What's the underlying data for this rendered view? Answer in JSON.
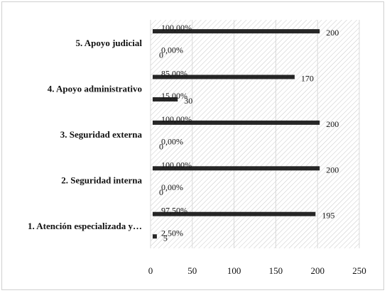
{
  "chart_data": {
    "type": "bar",
    "orientation": "horizontal",
    "categories": [
      "1. Atención especializada y…",
      "2. Seguridad interna",
      "3. Seguridad externa",
      "4. Apoyo administrativo",
      "5. Apoyo judicial"
    ],
    "series": [
      {
        "values": [
          5,
          0,
          0,
          30,
          0
        ],
        "percent_labels": [
          "2,50%",
          "0,00%",
          "0,00%",
          "15,00%",
          "0,00%"
        ],
        "value_labels": [
          "5",
          "0",
          "0",
          "30",
          "0"
        ]
      },
      {
        "values": [
          195,
          200,
          200,
          170,
          200
        ],
        "percent_labels": [
          "97,50%",
          "100,00%",
          "100,00%",
          "85,00%",
          "100,00%"
        ],
        "value_labels": [
          "195",
          "200",
          "200",
          "170",
          "200"
        ]
      }
    ],
    "xlim": [
      0,
      250
    ],
    "xticks": [
      "0",
      "50",
      "100",
      "150",
      "200",
      "250"
    ],
    "grid": true,
    "bar_color": "#262626",
    "plot_fill": "hatched-gray"
  }
}
